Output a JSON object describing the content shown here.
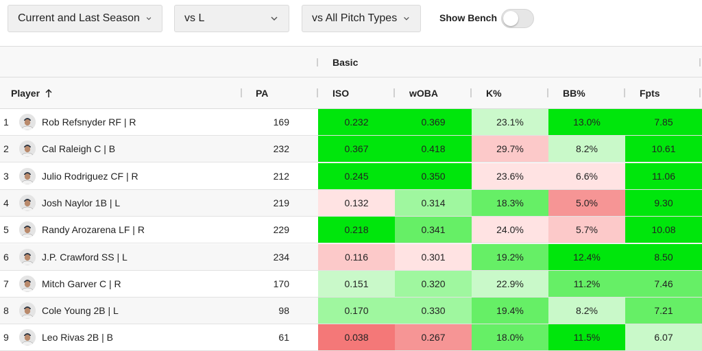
{
  "filters": {
    "season": {
      "value": "Current and Last Season"
    },
    "split": {
      "value": "vs L"
    },
    "pitch": {
      "value": "vs All Pitch Types"
    },
    "bench": {
      "label": "Show Bench",
      "enabled": false
    }
  },
  "table": {
    "group_header": "Basic",
    "columns": {
      "player": "Player",
      "pa": "PA",
      "iso": "ISO",
      "woba": "wOBA",
      "kpct": "K%",
      "bbpct": "BB%",
      "fpts": "Fpts"
    },
    "sort_column": "player",
    "rows": [
      {
        "rank": "1",
        "name": "Rob Refsnyder RF | R",
        "pa": "169",
        "iso": "0.232",
        "woba": "0.369",
        "kpct": "23.1%",
        "bbpct": "13.0%",
        "fpts": "7.85",
        "colors": {
          "iso": "#00e60c",
          "woba": "#00e60c",
          "kpct": "#cbf9cb",
          "bbpct": "#00e60c",
          "fpts": "#00e60c"
        }
      },
      {
        "rank": "2",
        "name": "Cal Raleigh C | B",
        "pa": "232",
        "iso": "0.367",
        "woba": "0.418",
        "kpct": "29.7%",
        "bbpct": "8.2%",
        "fpts": "10.61",
        "colors": {
          "iso": "#00e60c",
          "woba": "#00e60c",
          "kpct": "#fcc9c9",
          "bbpct": "#c9f9c9",
          "fpts": "#00e60c"
        }
      },
      {
        "rank": "3",
        "name": "Julio Rodriguez CF | R",
        "pa": "212",
        "iso": "0.245",
        "woba": "0.350",
        "kpct": "23.6%",
        "bbpct": "6.6%",
        "fpts": "11.06",
        "colors": {
          "iso": "#00e60c",
          "woba": "#00e60c",
          "kpct": "#ffe3e3",
          "bbpct": "#ffe3e3",
          "fpts": "#00e60c"
        }
      },
      {
        "rank": "4",
        "name": "Josh Naylor 1B | L",
        "pa": "219",
        "iso": "0.132",
        "woba": "0.314",
        "kpct": "18.3%",
        "bbpct": "5.0%",
        "fpts": "9.30",
        "colors": {
          "iso": "#ffe3e3",
          "woba": "#9ff79f",
          "kpct": "#66ef66",
          "bbpct": "#f69595",
          "fpts": "#00e60c"
        }
      },
      {
        "rank": "5",
        "name": "Randy Arozarena LF | R",
        "pa": "229",
        "iso": "0.218",
        "woba": "0.341",
        "kpct": "24.0%",
        "bbpct": "5.7%",
        "fpts": "10.08",
        "colors": {
          "iso": "#00e60c",
          "woba": "#66ef66",
          "kpct": "#ffe3e3",
          "bbpct": "#fcc9c9",
          "fpts": "#00e60c"
        }
      },
      {
        "rank": "6",
        "name": "J.P. Crawford SS | L",
        "pa": "234",
        "iso": "0.116",
        "woba": "0.301",
        "kpct": "19.2%",
        "bbpct": "12.4%",
        "fpts": "8.50",
        "colors": {
          "iso": "#fcc9c9",
          "woba": "#ffe3e3",
          "kpct": "#66ef66",
          "bbpct": "#00e60c",
          "fpts": "#00e60c"
        }
      },
      {
        "rank": "7",
        "name": "Mitch Garver C | R",
        "pa": "170",
        "iso": "0.151",
        "woba": "0.320",
        "kpct": "22.9%",
        "bbpct": "11.2%",
        "fpts": "7.46",
        "colors": {
          "iso": "#c9f9c9",
          "woba": "#9ff79f",
          "kpct": "#c9f9c9",
          "bbpct": "#66ef66",
          "fpts": "#66ef66"
        }
      },
      {
        "rank": "8",
        "name": "Cole Young 2B | L",
        "pa": "98",
        "iso": "0.170",
        "woba": "0.330",
        "kpct": "19.4%",
        "bbpct": "8.2%",
        "fpts": "7.21",
        "colors": {
          "iso": "#9ff79f",
          "woba": "#9ff79f",
          "kpct": "#66ef66",
          "bbpct": "#c9f9c9",
          "fpts": "#66ef66"
        }
      },
      {
        "rank": "9",
        "name": "Leo Rivas 2B | B",
        "pa": "61",
        "iso": "0.038",
        "woba": "0.267",
        "kpct": "18.0%",
        "bbpct": "11.5%",
        "fpts": "6.07",
        "colors": {
          "iso": "#f47878",
          "woba": "#f69595",
          "kpct": "#66ef66",
          "bbpct": "#00e60c",
          "fpts": "#c9f9c9"
        }
      }
    ]
  }
}
